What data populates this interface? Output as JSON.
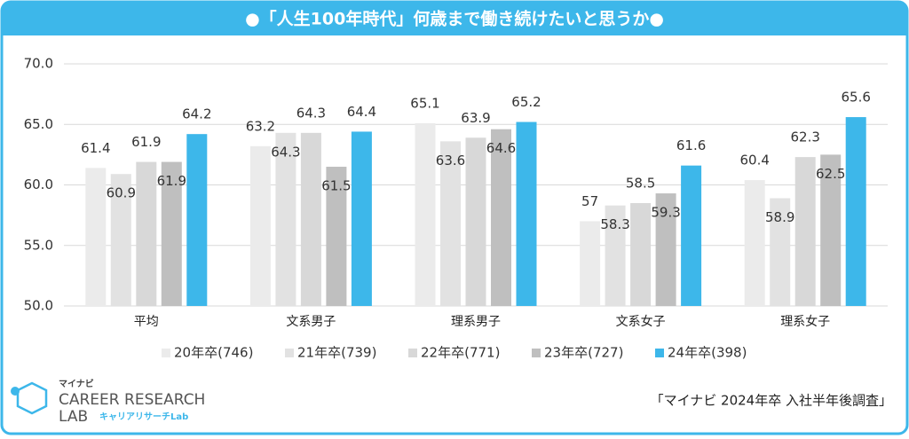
{
  "chart_data": {
    "type": "bar",
    "title": "●「人生100年時代」何歳まで働き続けたいと思うか●",
    "categories": [
      "平均",
      "文系男子",
      "理系男子",
      "文系女子",
      "理系女子"
    ],
    "series": [
      {
        "name": "20年卒(746)",
        "color": "#ebebeb",
        "values": [
          61.4,
          63.2,
          65.1,
          57,
          60.4
        ]
      },
      {
        "name": "21年卒(739)",
        "color": "#e2e2e2",
        "values": [
          60.9,
          64.3,
          63.6,
          58.3,
          58.9
        ]
      },
      {
        "name": "22年卒(771)",
        "color": "#d8d8d8",
        "values": [
          61.9,
          64.3,
          63.9,
          58.5,
          62.3
        ]
      },
      {
        "name": "23年卒(727)",
        "color": "#bfbfbf",
        "values": [
          61.9,
          61.5,
          64.6,
          59.3,
          62.5
        ]
      },
      {
        "name": "24年卒(398)",
        "color": "#3db7ea",
        "values": [
          64.2,
          64.4,
          65.2,
          61.6,
          65.6
        ]
      }
    ],
    "ylim": [
      50,
      70
    ],
    "yticks": [
      {
        "value": 50,
        "label": "50.0"
      },
      {
        "value": 55,
        "label": "55.0"
      },
      {
        "value": 60,
        "label": "60.0"
      },
      {
        "value": 65,
        "label": "65.0"
      },
      {
        "value": 70,
        "label": "70.0"
      }
    ],
    "grid": true,
    "legend": "bottom",
    "source": "「マイナビ 2024年卒 入社半年後調査」"
  },
  "logo": {
    "brand": "マイナビ",
    "line1": "CAREER RESEARCH",
    "line2": "LAB",
    "sub": "キャリアリサーチLab"
  }
}
